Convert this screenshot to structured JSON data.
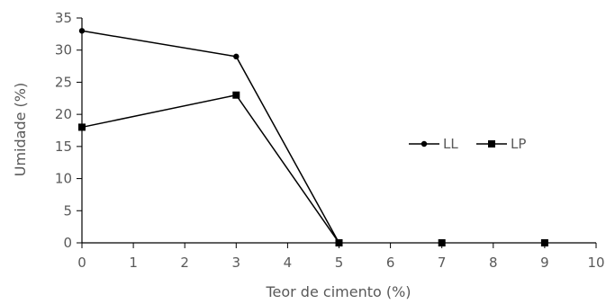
{
  "chart_data": {
    "type": "line",
    "title": "",
    "xlabel": "Teor de cimento (%)",
    "ylabel": "Umidade (%)",
    "xlim": [
      0,
      10
    ],
    "ylim": [
      0,
      35
    ],
    "xticks": [
      0,
      1,
      2,
      3,
      4,
      5,
      6,
      7,
      8,
      9,
      10
    ],
    "yticks": [
      0,
      5,
      10,
      15,
      20,
      25,
      30,
      35
    ],
    "grid": false,
    "legend_position": "right",
    "series": [
      {
        "name": "LL",
        "marker": "circle",
        "color": "#000000",
        "x": [
          0,
          3,
          5
        ],
        "y": [
          33,
          29,
          0
        ]
      },
      {
        "name": "LP",
        "marker": "square",
        "color": "#000000",
        "x": [
          0,
          3,
          5,
          7,
          9
        ],
        "y": [
          18,
          23,
          0,
          0,
          0
        ]
      }
    ],
    "connect_segments": {
      "LP": [
        [
          0,
          2
        ]
      ]
    }
  }
}
